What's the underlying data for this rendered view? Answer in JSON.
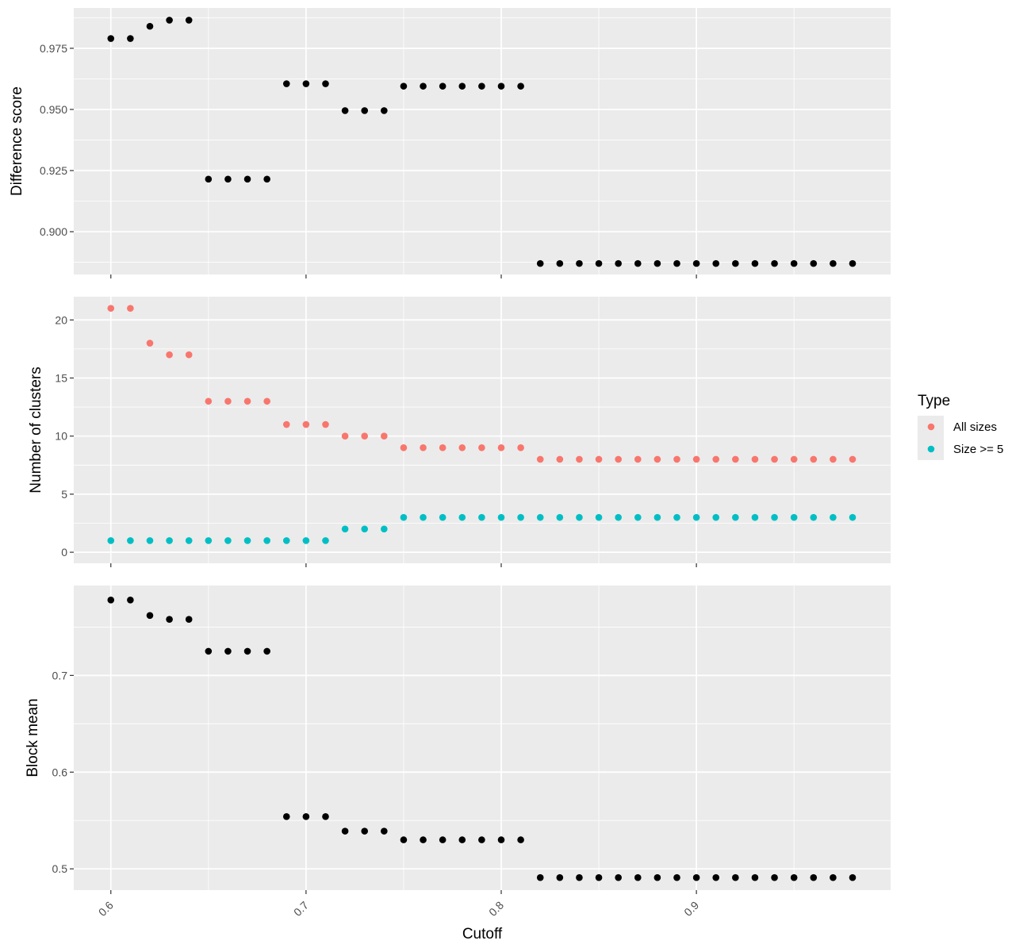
{
  "chart_data": {
    "type": "scatter",
    "x_label": "Cutoff",
    "x_ticks": [
      0.6,
      0.7,
      0.8,
      0.9
    ],
    "x_tick_labels": [
      "0.6",
      "0.7",
      "0.8",
      "0.9"
    ],
    "x_range": [
      0.581,
      0.9995
    ],
    "x": [
      0.6,
      0.61,
      0.62,
      0.63,
      0.64,
      0.65,
      0.66,
      0.67,
      0.68,
      0.69,
      0.7,
      0.71,
      0.72,
      0.73,
      0.74,
      0.75,
      0.76,
      0.77,
      0.78,
      0.79,
      0.8,
      0.81,
      0.82,
      0.83,
      0.84,
      0.85,
      0.86,
      0.87,
      0.88,
      0.89,
      0.9,
      0.91,
      0.92,
      0.93,
      0.94,
      0.95,
      0.96,
      0.97,
      0.98
    ],
    "grid": true,
    "legend": {
      "title": "Type",
      "placement": "right",
      "entries": [
        {
          "label": "All sizes",
          "color": "#F8766D"
        },
        {
          "label": "Size >= 5",
          "color": "#00BFC4"
        }
      ]
    },
    "panels": [
      {
        "y_label": "Difference score",
        "y_ticks": [
          0.9,
          0.925,
          0.95,
          0.975
        ],
        "y_tick_labels": [
          "0.900",
          "0.925",
          "0.950",
          "0.975"
        ],
        "y_range": [
          0.8825,
          0.9915
        ],
        "series": [
          {
            "color": "#000000",
            "values": [
              0.979,
              0.979,
              0.984,
              0.9865,
              0.9865,
              0.9215,
              0.9215,
              0.9215,
              0.9215,
              0.9605,
              0.9605,
              0.9605,
              0.9495,
              0.9495,
              0.9495,
              0.9595,
              0.9595,
              0.9595,
              0.9595,
              0.9595,
              0.9595,
              0.9595,
              0.887,
              0.887,
              0.887,
              0.887,
              0.887,
              0.887,
              0.887,
              0.887,
              0.887,
              0.887,
              0.887,
              0.887,
              0.887,
              0.887,
              0.887,
              0.887,
              0.887
            ]
          }
        ]
      },
      {
        "y_label": "Number of clusters",
        "y_ticks": [
          0,
          5,
          10,
          15,
          20
        ],
        "y_tick_labels": [
          "0",
          "5",
          "10",
          "15",
          "20"
        ],
        "y_range": [
          -0.95,
          22
        ],
        "series": [
          {
            "name": "All sizes",
            "color": "#F8766D",
            "values": [
              21,
              21,
              18,
              17,
              17,
              13,
              13,
              13,
              13,
              11,
              11,
              11,
              10,
              10,
              10,
              9,
              9,
              9,
              9,
              9,
              9,
              9,
              8,
              8,
              8,
              8,
              8,
              8,
              8,
              8,
              8,
              8,
              8,
              8,
              8,
              8,
              8,
              8,
              8
            ]
          },
          {
            "name": "Size >= 5",
            "color": "#00BFC4",
            "values": [
              1,
              1,
              1,
              1,
              1,
              1,
              1,
              1,
              1,
              1,
              1,
              1,
              2,
              2,
              2,
              3,
              3,
              3,
              3,
              3,
              3,
              3,
              3,
              3,
              3,
              3,
              3,
              3,
              3,
              3,
              3,
              3,
              3,
              3,
              3,
              3,
              3,
              3,
              3
            ]
          }
        ]
      },
      {
        "y_label": "Block mean",
        "y_ticks": [
          0.5,
          0.6,
          0.7
        ],
        "y_tick_labels": [
          "0.5",
          "0.6",
          "0.7"
        ],
        "y_range": [
          0.478,
          0.793
        ],
        "series": [
          {
            "color": "#000000",
            "values": [
              0.778,
              0.778,
              0.762,
              0.758,
              0.758,
              0.725,
              0.725,
              0.725,
              0.725,
              0.554,
              0.554,
              0.554,
              0.539,
              0.539,
              0.539,
              0.53,
              0.53,
              0.53,
              0.53,
              0.53,
              0.53,
              0.53,
              0.491,
              0.491,
              0.491,
              0.491,
              0.491,
              0.491,
              0.491,
              0.491,
              0.491,
              0.491,
              0.491,
              0.491,
              0.491,
              0.491,
              0.491,
              0.491,
              0.491
            ]
          }
        ]
      }
    ]
  }
}
